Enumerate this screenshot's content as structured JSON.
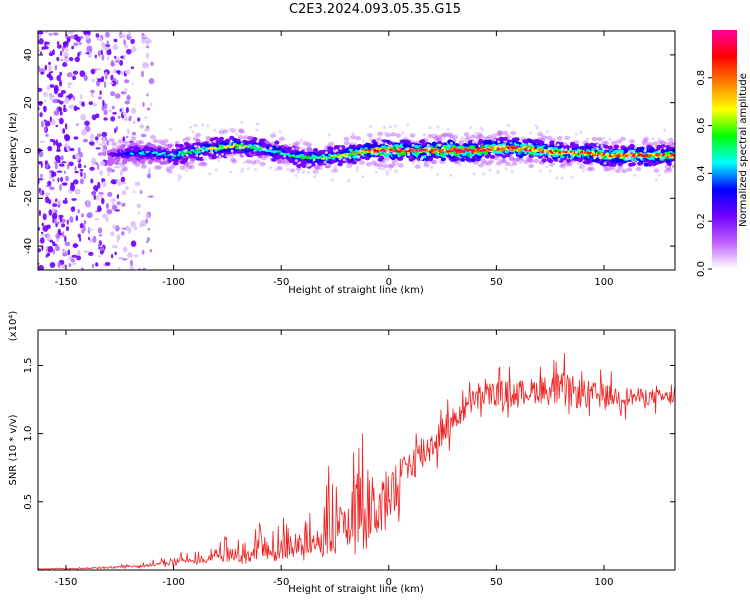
{
  "figure": {
    "title": "C2E3.2024.093.05.35.G15"
  },
  "colorbar": {
    "label": "Normalized spectral amplitude",
    "ticks": [
      "0.0",
      "0.2",
      "0.4",
      "0.6",
      "0.8"
    ],
    "tick_values": [
      0.0,
      0.2,
      0.4,
      0.6,
      0.8
    ],
    "range": [
      0,
      1
    ],
    "colormap": [
      "#ffffff",
      "#c060ff",
      "#7000ff",
      "#0000ff",
      "#00ffff",
      "#00ff00",
      "#ffff00",
      "#ff8000",
      "#ff0000",
      "#ff00a0"
    ]
  },
  "chart_data": [
    {
      "type": "heatmap",
      "title": "",
      "xlabel": "Height of straight line (km)",
      "ylabel": "Frequency (Hz)",
      "xlim": [
        -163,
        133
      ],
      "ylim": [
        -50,
        50
      ],
      "x_ticks": [
        "-150",
        "-100",
        "-50",
        "0",
        "50",
        "100"
      ],
      "x_tick_values": [
        -150,
        -100,
        -50,
        0,
        50,
        100
      ],
      "y_ticks": [
        "-40",
        "-20",
        "0",
        "20",
        "40"
      ],
      "y_tick_values": [
        -40,
        -20,
        0,
        20,
        40
      ],
      "noise_region_x": [
        -163,
        -110
      ],
      "signal_start_x": -130,
      "ridge": {
        "x": [
          -130,
          -120,
          -110,
          -100,
          -90,
          -80,
          -70,
          -60,
          -50,
          -40,
          -30,
          -20,
          -10,
          0,
          10,
          20,
          30,
          40,
          50,
          60,
          70,
          80,
          90,
          100,
          110,
          120,
          133
        ],
        "freq": [
          -2,
          -1,
          -1,
          -2,
          0,
          1,
          2,
          1,
          -1,
          -3,
          -3,
          -2,
          0,
          0,
          0,
          0,
          0,
          0,
          1,
          1,
          0,
          -1,
          -1,
          -2,
          -2,
          -2,
          -2
        ],
        "peak_amplitude": [
          0.15,
          0.3,
          0.35,
          0.4,
          0.45,
          0.55,
          0.55,
          0.45,
          0.4,
          0.45,
          0.5,
          0.55,
          0.7,
          0.85,
          0.8,
          0.8,
          0.9,
          0.9,
          0.8,
          0.8,
          0.75,
          0.7,
          0.7,
          0.75,
          0.7,
          0.75,
          0.7
        ]
      }
    },
    {
      "type": "line",
      "title": "",
      "xlabel": "Height of straight line (km)",
      "ylabel": "SNR (10 * v/v)",
      "y_multiplier": "(x10⁴)",
      "xlim": [
        -163,
        133
      ],
      "ylim": [
        0,
        17600
      ],
      "x_ticks": [
        "-150",
        "-100",
        "-50",
        "0",
        "50",
        "100"
      ],
      "x_tick_values": [
        -150,
        -100,
        -50,
        0,
        50,
        100
      ],
      "y_ticks": [
        "0.5",
        "1.0",
        "1.5"
      ],
      "y_tick_values": [
        5000,
        10000,
        15000
      ],
      "color": "#ee2222",
      "envelope": {
        "x": [
          -163,
          -140,
          -120,
          -110,
          -100,
          -90,
          -80,
          -70,
          -60,
          -50,
          -45,
          -40,
          -35,
          -30,
          -25,
          -20,
          -15,
          -10,
          -5,
          0,
          5,
          10,
          15,
          20,
          25,
          30,
          40,
          50,
          60,
          70,
          80,
          90,
          100,
          110,
          120,
          133
        ],
        "base": [
          100,
          150,
          300,
          450,
          600,
          800,
          1000,
          1100,
          1200,
          1400,
          1500,
          1700,
          1900,
          2000,
          2200,
          2400,
          2800,
          3400,
          5000,
          7000,
          7200,
          7800,
          8500,
          9200,
          10200,
          11000,
          12500,
          13000,
          13000,
          13200,
          13200,
          12900,
          12800,
          12700,
          12700,
          12600
        ],
        "amp": [
          50,
          80,
          200,
          400,
          700,
          1000,
          1500,
          1800,
          2500,
          3500,
          4000,
          4500,
          5000,
          5500,
          6000,
          6500,
          9000,
          8000,
          3000,
          2000,
          1500,
          2000,
          2500,
          2000,
          1800,
          1500,
          1500,
          1500,
          1500,
          1600,
          2200,
          1800,
          1400,
          1200,
          1000,
          900
        ]
      }
    }
  ]
}
